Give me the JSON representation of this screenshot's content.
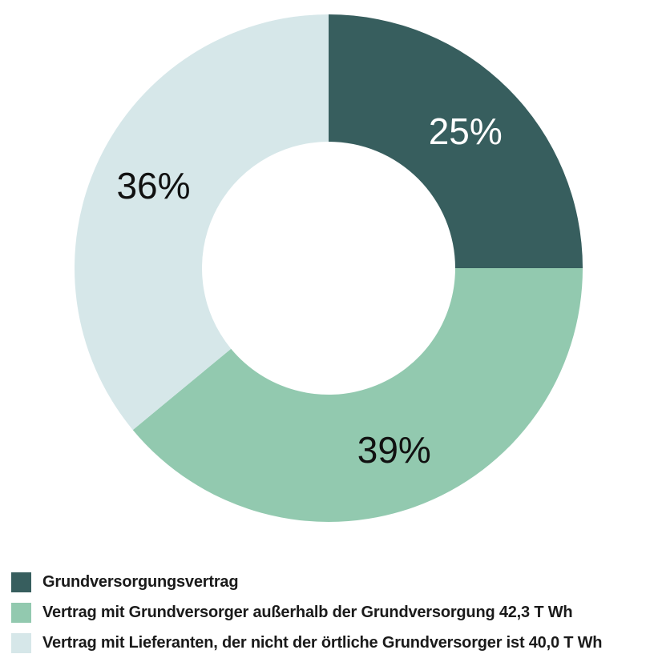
{
  "chart_data": {
    "type": "pie",
    "variant": "donut",
    "slices": [
      {
        "name": "Grundversorgungsvertrag",
        "value": 25,
        "label": "25%",
        "color": "#375e5e",
        "label_color": "#ffffff"
      },
      {
        "name": "Vertrag mit Grundversorger außerhalb der Grundversorgung 42,3 T Wh",
        "value": 39,
        "label": "39%",
        "color": "#92c9af",
        "label_color": "#111111"
      },
      {
        "name": "Vertrag mit Lieferanten, der nicht der örtliche Grundversorger ist 40,0 T Wh",
        "value": 36,
        "label": "36%",
        "color": "#d6e7e9",
        "label_color": "#111111"
      }
    ],
    "start": "12 o'clock",
    "direction": "clockwise",
    "legend_position": "bottom-left"
  }
}
